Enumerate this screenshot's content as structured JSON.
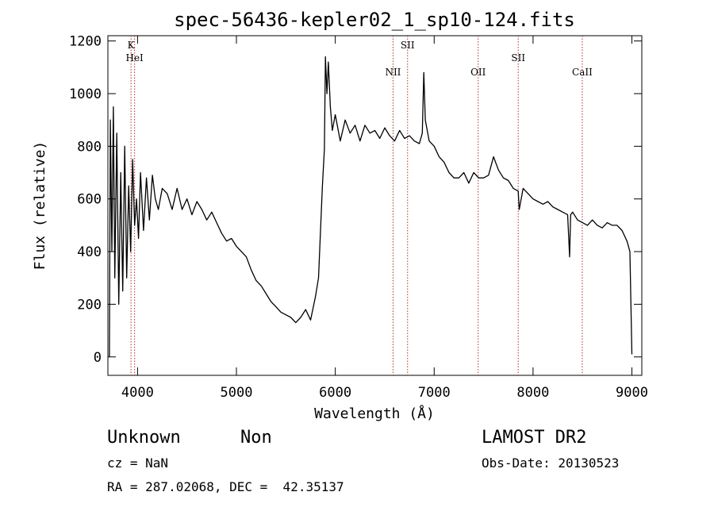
{
  "chart_data": {
    "type": "line",
    "title": "spec-56436-kepler02_1_sp10-124.fits",
    "xlabel": "Wavelength (Å)",
    "ylabel": "Flux (relative)",
    "xlim": [
      3700,
      9100
    ],
    "ylim": [
      -70,
      1220
    ],
    "x_ticks": [
      4000,
      5000,
      6000,
      7000,
      8000,
      9000
    ],
    "y_ticks": [
      0,
      200,
      400,
      600,
      800,
      1000,
      1200
    ],
    "grid": false,
    "spectral_lines": [
      {
        "label": "K",
        "wavelength": 3934
      },
      {
        "label": "HeI",
        "wavelength": 3970
      },
      {
        "label": "NII",
        "wavelength": 6584
      },
      {
        "label": "SII",
        "wavelength": 6731
      },
      {
        "label": "OII",
        "wavelength": 7445
      },
      {
        "label": "SII",
        "wavelength": 7850
      },
      {
        "label": "CaII",
        "wavelength": 8498
      }
    ],
    "series": [
      {
        "x": [
          3715,
          3725,
          3740,
          3755,
          3770,
          3790,
          3810,
          3830,
          3850,
          3870,
          3890,
          3910,
          3930,
          3950,
          3970,
          3990,
          4010,
          4030,
          4060,
          4090,
          4120,
          4150,
          4180,
          4210,
          4250,
          4300,
          4350,
          4400,
          4450,
          4500,
          4550,
          4600,
          4650,
          4700,
          4750,
          4800,
          4850,
          4900,
          4950,
          5000,
          5050,
          5100,
          5150,
          5200,
          5250,
          5300,
          5350,
          5400,
          5450,
          5500,
          5550,
          5600,
          5650,
          5700,
          5750,
          5800,
          5830,
          5850,
          5870,
          5890,
          5900,
          5915,
          5930,
          5950,
          5970,
          6000,
          6050,
          6100,
          6150,
          6200,
          6250,
          6300,
          6350,
          6400,
          6450,
          6500,
          6550,
          6600,
          6650,
          6700,
          6750,
          6800,
          6850,
          6880,
          6895,
          6910,
          6950,
          7000,
          7050,
          7100,
          7150,
          7200,
          7250,
          7300,
          7350,
          7400,
          7450,
          7500,
          7550,
          7600,
          7650,
          7700,
          7750,
          7800,
          7850,
          7860,
          7900,
          7950,
          8000,
          8050,
          8100,
          8150,
          8200,
          8250,
          8300,
          8350,
          8370,
          8380,
          8400,
          8450,
          8500,
          8550,
          8600,
          8650,
          8700,
          8750,
          8800,
          8850,
          8900,
          8950,
          8980,
          9000
        ],
        "y": [
          0,
          900,
          400,
          950,
          300,
          850,
          200,
          700,
          250,
          800,
          300,
          650,
          400,
          750,
          500,
          600,
          450,
          700,
          480,
          680,
          520,
          690,
          600,
          560,
          640,
          620,
          560,
          640,
          560,
          600,
          540,
          590,
          560,
          520,
          550,
          510,
          470,
          440,
          450,
          420,
          400,
          380,
          330,
          290,
          270,
          240,
          210,
          190,
          170,
          160,
          150,
          130,
          150,
          180,
          140,
          230,
          300,
          480,
          650,
          790,
          1140,
          1000,
          1120,
          950,
          860,
          920,
          820,
          900,
          850,
          880,
          820,
          880,
          850,
          860,
          830,
          870,
          840,
          820,
          860,
          830,
          840,
          820,
          810,
          850,
          1080,
          900,
          820,
          800,
          760,
          740,
          700,
          680,
          680,
          700,
          660,
          700,
          680,
          680,
          690,
          760,
          710,
          680,
          670,
          640,
          630,
          560,
          640,
          620,
          600,
          590,
          580,
          590,
          570,
          560,
          550,
          540,
          380,
          540,
          550,
          520,
          510,
          500,
          520,
          500,
          490,
          510,
          500,
          500,
          480,
          440,
          400,
          10
        ]
      }
    ]
  },
  "info": {
    "object_name": "Unknown",
    "object_class": "Non",
    "survey": "LAMOST DR2",
    "cz": "cz = NaN",
    "obs_date": "Obs-Date: 20130523",
    "coords": "RA = 287.02068, DEC =  42.35137"
  },
  "colors": {
    "spectrum": "#000000",
    "line_markers": "#b03030",
    "axes": "#000000",
    "background": "#ffffff"
  }
}
